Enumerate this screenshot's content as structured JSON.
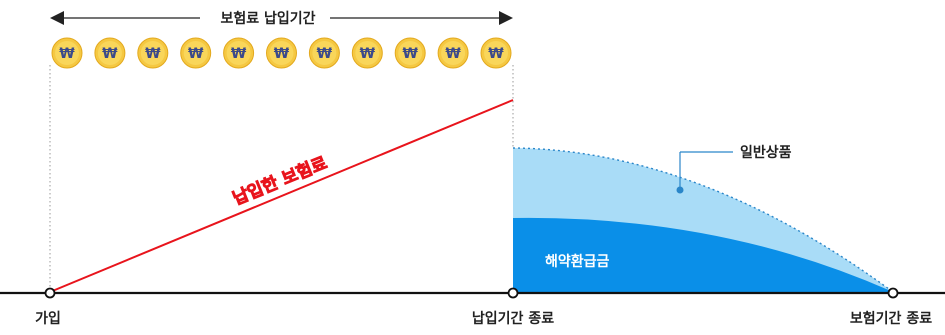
{
  "diagram": {
    "period_label": "보험료 납입기간",
    "paid_premium_label": "납입한 보험료",
    "general_product_label": "일반상품",
    "surrender_value_label": "해약환급금",
    "axis_labels": {
      "join": "가입",
      "payment_end": "납입기간 종료",
      "coverage_end": "보험기간 종료"
    },
    "coins": {
      "count": 11,
      "symbol": "₩"
    },
    "colors": {
      "premium_line": "#e8141c",
      "general_area": "#a9dcf7",
      "surrender_area": "#0a8fe8",
      "coin_fill": "#f5c842",
      "coin_symbol": "#3b4a8a",
      "axis": "#111111",
      "leader_line": "#2a86c9"
    }
  }
}
